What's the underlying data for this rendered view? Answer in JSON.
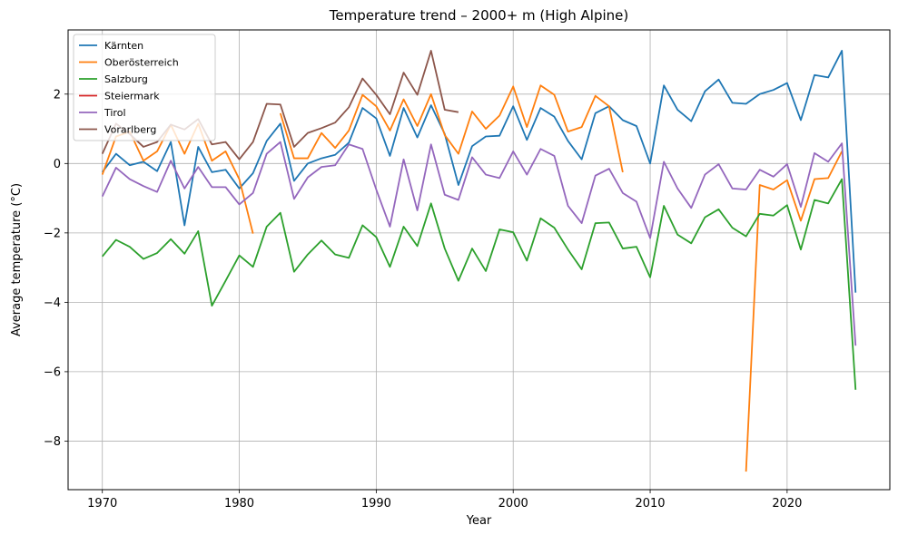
{
  "chart_data": {
    "type": "line",
    "title": "Temperature trend – 2000+ m (High Alpine)",
    "xlabel": "Year",
    "ylabel": "Average temperature (°C)",
    "xlim": [
      1967.5,
      2027.5
    ],
    "ylim": [
      -9.4,
      3.85
    ],
    "xticks": [
      1970,
      1980,
      1990,
      2000,
      2010,
      2020
    ],
    "yticks": [
      -8,
      -6,
      -4,
      -2,
      0,
      2
    ],
    "ytick_labels": [
      "−8",
      "−6",
      "−4",
      "−2",
      "0",
      "2"
    ],
    "grid": true,
    "legend_position": "top-left",
    "series": [
      {
        "name": "Kärnten",
        "color": "#1f77b4",
        "x": [
          1970,
          1971,
          1972,
          1973,
          1974,
          1975,
          1976,
          1977,
          1978,
          1979,
          1980,
          1981,
          1982,
          1983,
          1984,
          1985,
          1986,
          1987,
          1988,
          1989,
          1990,
          1991,
          1992,
          1993,
          1994,
          1995,
          1996,
          1997,
          1998,
          1999,
          2000,
          2001,
          2002,
          2003,
          2004,
          2005,
          2006,
          2007,
          2008,
          2009,
          2010,
          2011,
          2012,
          2013,
          2014,
          2015,
          2016,
          2017,
          2018,
          2019,
          2020,
          2021,
          2022,
          2023,
          2024,
          2025
        ],
        "values": [
          -0.25,
          0.28,
          -0.05,
          0.05,
          -0.22,
          0.62,
          -1.78,
          0.48,
          -0.25,
          -0.18,
          -0.72,
          -0.28,
          0.65,
          1.15,
          -0.5,
          0.0,
          0.15,
          0.25,
          0.6,
          1.6,
          1.3,
          0.22,
          1.6,
          0.75,
          1.68,
          0.85,
          -0.62,
          0.5,
          0.78,
          0.8,
          1.65,
          0.68,
          1.6,
          1.35,
          0.65,
          0.12,
          1.45,
          1.65,
          1.25,
          1.08,
          0.0,
          2.25,
          1.55,
          1.22,
          2.08,
          2.42,
          1.75,
          1.72,
          2.0,
          2.12,
          2.32,
          1.25,
          2.55,
          2.48,
          3.25,
          -3.72
        ]
      },
      {
        "name": "Oberösterreich",
        "color": "#ff7f0e",
        "x": [
          1970,
          1971,
          1972,
          1973,
          1974,
          1975,
          1976,
          1977,
          1978,
          1979,
          1980,
          1981,
          null,
          1983,
          1984,
          1985,
          1986,
          1987,
          1988,
          1989,
          1990,
          1991,
          1992,
          1993,
          1994,
          1995,
          1996,
          1997,
          1998,
          1999,
          2000,
          2001,
          2002,
          2003,
          2004,
          2005,
          2006,
          2007,
          2008,
          null,
          2017,
          2018,
          2019,
          2020,
          2021,
          2022,
          2023,
          2024
        ],
        "values": [
          -0.32,
          0.78,
          0.92,
          0.08,
          0.35,
          1.12,
          0.28,
          1.15,
          0.08,
          0.35,
          -0.45,
          -2.02,
          null,
          1.45,
          0.15,
          0.15,
          0.88,
          0.45,
          0.95,
          1.98,
          1.65,
          0.95,
          1.85,
          1.08,
          2.0,
          0.82,
          0.28,
          1.5,
          1.0,
          1.38,
          2.22,
          1.05,
          2.25,
          1.98,
          0.92,
          1.05,
          1.95,
          1.65,
          -0.25,
          null,
          -8.88,
          -0.62,
          -0.75,
          -0.48,
          -1.65,
          -0.45,
          -0.42,
          0.35
        ]
      },
      {
        "name": "Salzburg",
        "color": "#2ca02c",
        "x": [
          1970,
          1971,
          1972,
          1973,
          1974,
          1975,
          1976,
          1977,
          1978,
          1979,
          1980,
          1981,
          1982,
          1983,
          1984,
          1985,
          1986,
          1987,
          1988,
          1989,
          1990,
          1991,
          1992,
          1993,
          1994,
          1995,
          1996,
          1997,
          1998,
          1999,
          2000,
          2001,
          2002,
          2003,
          2004,
          2005,
          2006,
          2007,
          2008,
          2009,
          2010,
          2011,
          2012,
          2013,
          2014,
          2015,
          2016,
          2017,
          2018,
          2019,
          2020,
          2021,
          2022,
          2023,
          2024,
          2025
        ],
        "values": [
          -2.68,
          -2.2,
          -2.4,
          -2.75,
          -2.58,
          -2.18,
          -2.6,
          -1.95,
          -4.1,
          -3.38,
          -2.65,
          -2.98,
          -1.82,
          -1.42,
          -3.12,
          -2.62,
          -2.22,
          -2.62,
          -2.72,
          -1.78,
          -2.12,
          -2.98,
          -1.82,
          -2.38,
          -1.15,
          -2.45,
          -3.38,
          -2.45,
          -3.1,
          -1.9,
          -1.98,
          -2.8,
          -1.58,
          -1.85,
          -2.48,
          -3.05,
          -1.72,
          -1.7,
          -2.45,
          -2.4,
          -3.28,
          -1.22,
          -2.05,
          -2.3,
          -1.55,
          -1.32,
          -1.85,
          -2.1,
          -1.45,
          -1.5,
          -1.2,
          -2.48,
          -1.05,
          -1.15,
          -0.45,
          -6.52
        ]
      },
      {
        "name": "Steiermark",
        "color": "#d62728",
        "x": [],
        "values": []
      },
      {
        "name": "Tirol",
        "color": "#9467bd",
        "x": [
          1970,
          1971,
          1972,
          1973,
          1974,
          1975,
          1976,
          1977,
          1978,
          1979,
          1980,
          1981,
          1982,
          1983,
          1984,
          1985,
          1986,
          1987,
          1988,
          1989,
          1990,
          1991,
          1992,
          1993,
          1994,
          1995,
          1996,
          1997,
          1998,
          1999,
          2000,
          2001,
          2002,
          2003,
          2004,
          2005,
          2006,
          2007,
          2008,
          2009,
          2010,
          2011,
          2012,
          2013,
          2014,
          2015,
          2016,
          2017,
          2018,
          2019,
          2020,
          2021,
          2022,
          2023,
          2024,
          2025
        ],
        "values": [
          -0.95,
          -0.12,
          -0.45,
          -0.65,
          -0.82,
          0.08,
          -0.72,
          -0.1,
          -0.68,
          -0.68,
          -1.18,
          -0.85,
          0.28,
          0.62,
          -1.02,
          -0.4,
          -0.1,
          -0.05,
          0.55,
          0.42,
          -0.75,
          -1.82,
          0.12,
          -1.35,
          0.55,
          -0.9,
          -1.05,
          0.18,
          -0.32,
          -0.42,
          0.35,
          -0.32,
          0.42,
          0.22,
          -1.22,
          -1.72,
          -0.35,
          -0.15,
          -0.85,
          -1.1,
          -2.15,
          0.05,
          -0.72,
          -1.28,
          -0.32,
          -0.02,
          -0.72,
          -0.75,
          -0.18,
          -0.38,
          -0.02,
          -1.25,
          0.3,
          0.05,
          0.58,
          -5.25
        ]
      },
      {
        "name": "Vorarlberg",
        "color": "#8c564b",
        "x": [
          1970,
          1971,
          1972,
          1973,
          1974,
          1975,
          1976,
          1977,
          1978,
          1979,
          1980,
          1981,
          1982,
          1983,
          1984,
          1985,
          1986,
          1987,
          1988,
          1989,
          1990,
          1991,
          1992,
          1993,
          1994,
          1995,
          1996
        ],
        "values": [
          0.28,
          1.15,
          0.85,
          0.48,
          0.62,
          1.12,
          0.98,
          1.28,
          0.55,
          0.62,
          0.12,
          0.62,
          1.72,
          1.7,
          0.48,
          0.88,
          1.02,
          1.18,
          1.62,
          2.45,
          1.98,
          1.42,
          2.62,
          1.98,
          3.25,
          1.55,
          1.48
        ]
      }
    ]
  }
}
